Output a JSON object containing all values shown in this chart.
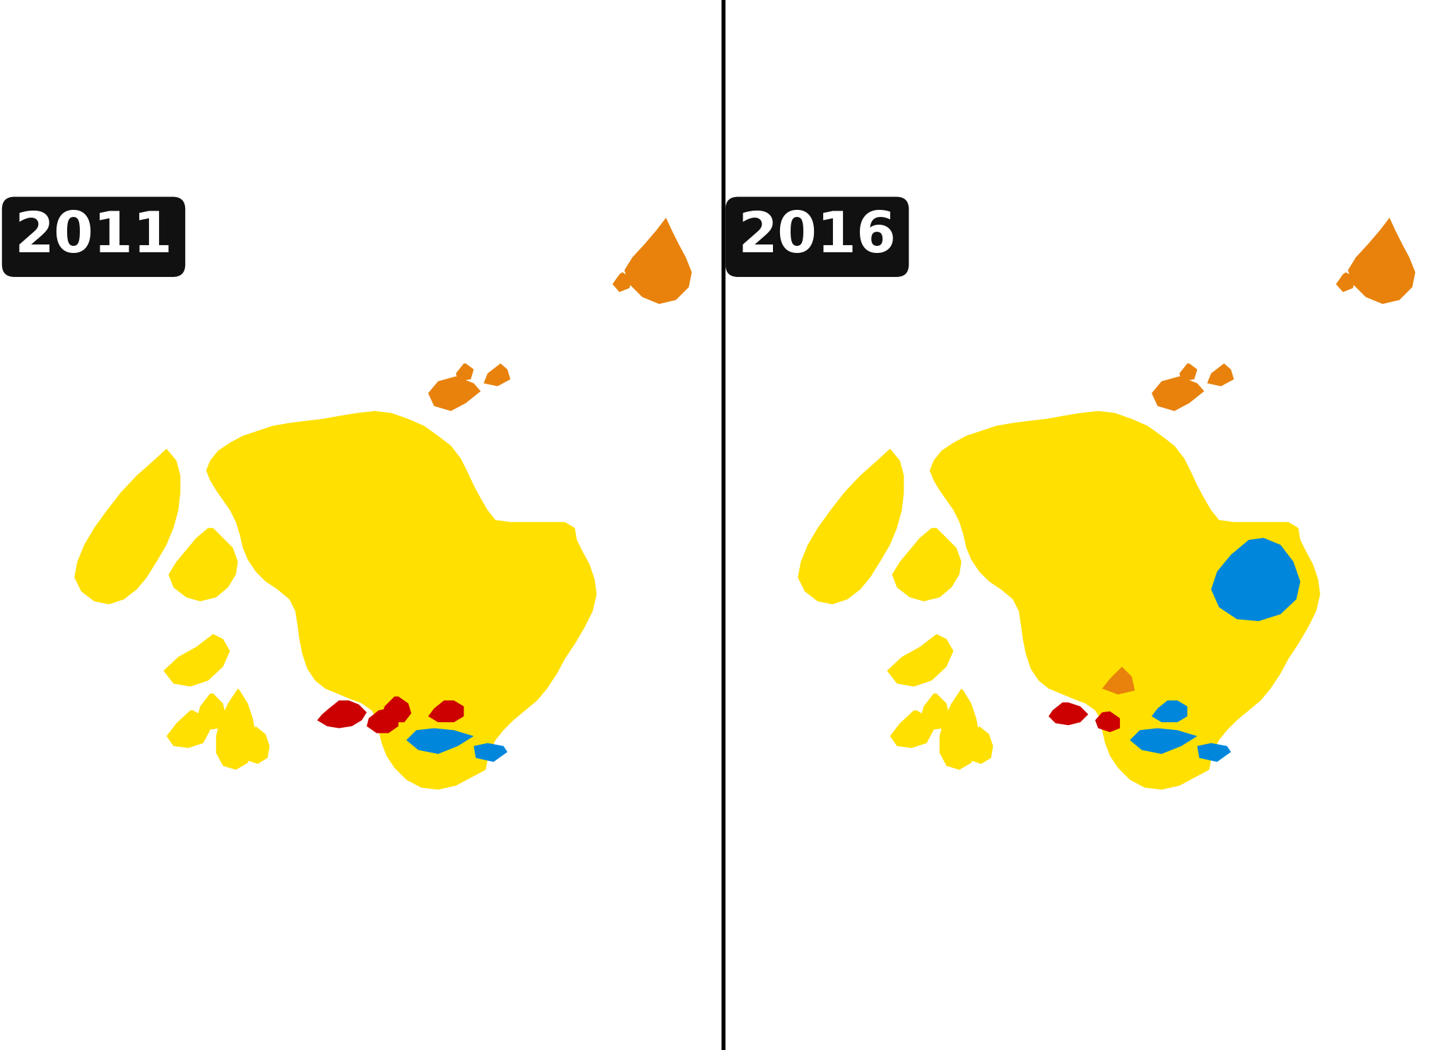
{
  "title_2011": "2011",
  "title_2016": "2016",
  "background_color": "#ffffff",
  "label_bg_color": "#111111",
  "label_text_color": "#ffffff",
  "snp_color": "#FFE000",
  "labour_color": "#CC0000",
  "conservative_color": "#0087DC",
  "libdem_color": "#E8820C",
  "divider_color": "#000000",
  "label_fontsize": 58,
  "figsize": [
    20.48,
    14.86
  ],
  "dpi": 100,
  "xlim": [
    -7.8,
    -0.5
  ],
  "ylim": [
    54.5,
    61.0
  ]
}
